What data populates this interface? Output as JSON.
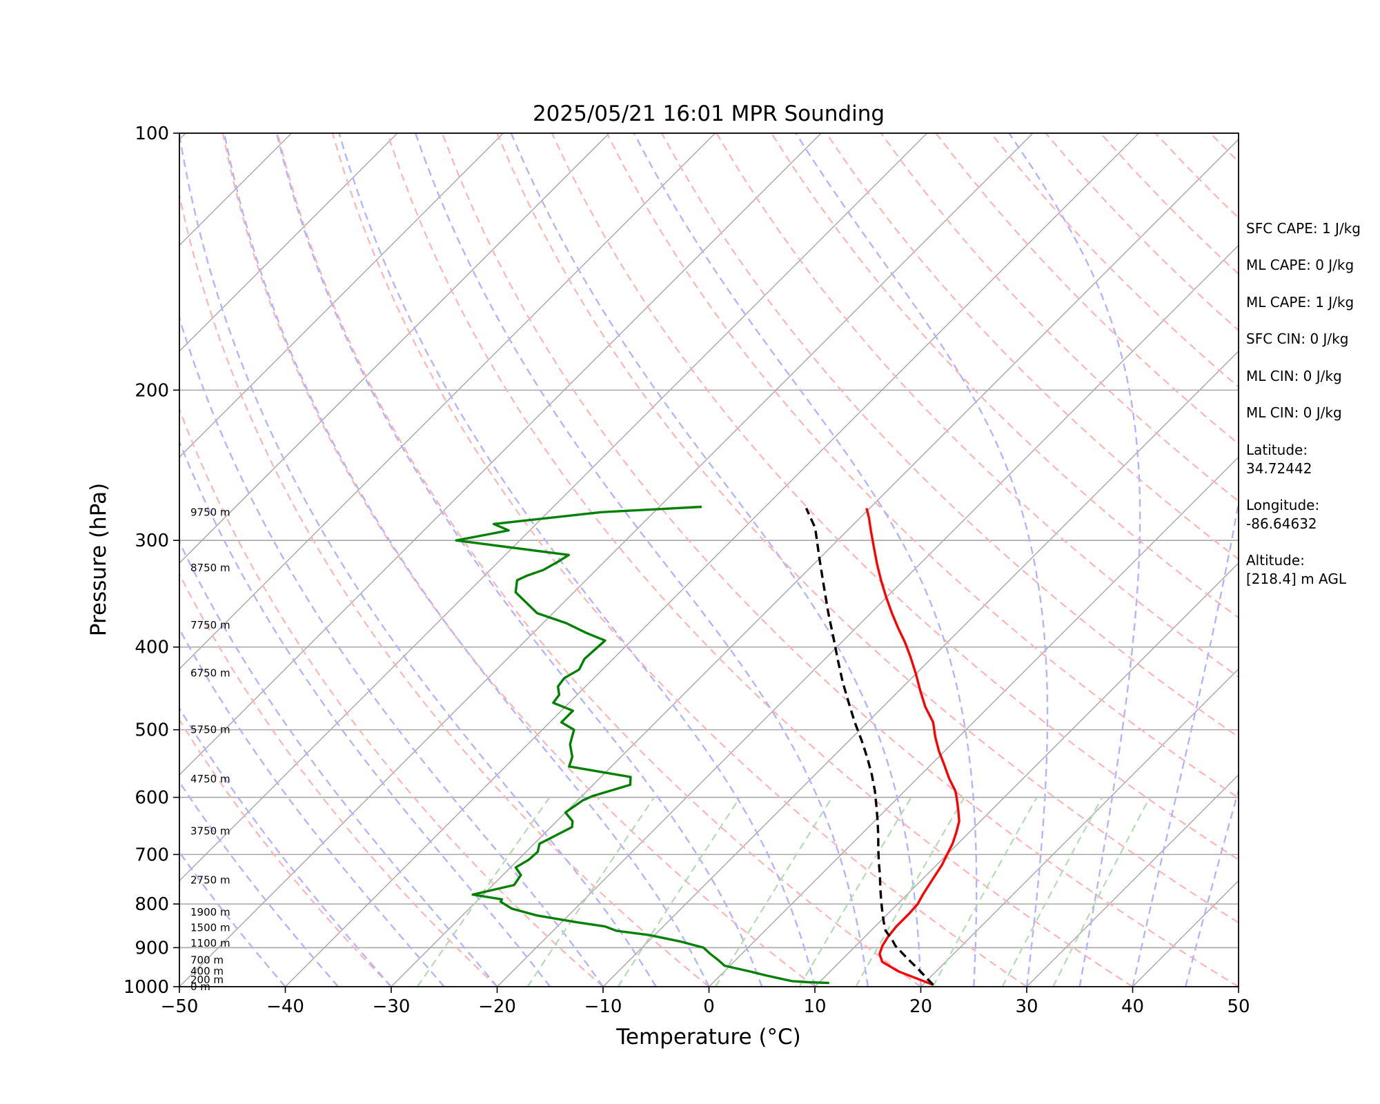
{
  "chart_data": {
    "type": "line",
    "subtype": "skew-T log-P diagram",
    "title": "2025/05/21 16:01 MPR Sounding",
    "xlabel": "Temperature (°C)",
    "ylabel": "Pressure (hPa)",
    "xlim": [
      -50,
      50
    ],
    "ylim": [
      1000,
      100
    ],
    "y_scale": "log",
    "x_ticks": [
      "−50",
      "−40",
      "−30",
      "−20",
      "−10",
      "0",
      "10",
      "20",
      "30",
      "40",
      "50"
    ],
    "y_ticks": [
      1000,
      900,
      800,
      700,
      600,
      500,
      400,
      300,
      200,
      100
    ],
    "grid": "horizontal isobars at y ticks",
    "colors": {
      "temperature": "#ff0000",
      "dewpoint": "#008000",
      "parcel": "#000000",
      "isotherm": "#a6a6a6",
      "dry_adiabat": "#ffb3b3",
      "moist_adiabat": "#b3b3ff",
      "mixing_ratio": "#b3dbb3"
    },
    "series": [
      {
        "name": "",
        "role": "temperature",
        "points": [
          [
            21.0,
            995
          ],
          [
            16.5,
            960
          ],
          [
            14.0,
            935
          ],
          [
            13.0,
            915
          ],
          [
            12.5,
            895
          ],
          [
            12.2,
            875
          ],
          [
            12.0,
            850
          ],
          [
            12.0,
            820
          ],
          [
            11.9,
            800
          ],
          [
            11.5,
            780
          ],
          [
            11.0,
            750
          ],
          [
            10.5,
            720
          ],
          [
            10.0,
            700
          ],
          [
            9.5,
            680
          ],
          [
            8.8,
            660
          ],
          [
            8.0,
            640
          ],
          [
            6.8,
            620
          ],
          [
            5.5,
            600
          ],
          [
            4.8,
            590
          ],
          [
            3.0,
            570
          ],
          [
            1.3,
            550
          ],
          [
            -0.5,
            530
          ],
          [
            -2.2,
            510
          ],
          [
            -3.8,
            490
          ],
          [
            -6.0,
            470
          ],
          [
            -8.0,
            450
          ],
          [
            -10.0,
            430
          ],
          [
            -12.2,
            410
          ],
          [
            -14.0,
            395
          ],
          [
            -16.0,
            380
          ],
          [
            -18.0,
            365
          ],
          [
            -20.0,
            350
          ],
          [
            -22.0,
            335
          ],
          [
            -24.0,
            320
          ],
          [
            -26.0,
            305
          ],
          [
            -27.8,
            292
          ],
          [
            -29.2,
            282
          ],
          [
            -30.3,
            275
          ]
        ]
      },
      {
        "name": "",
        "role": "dewpoint",
        "points": [
          [
            11.0,
            990
          ],
          [
            9.0,
            988
          ],
          [
            7.3,
            985
          ],
          [
            4.3,
            970
          ],
          [
            2.5,
            960
          ],
          [
            -0.5,
            945
          ],
          [
            -1.7,
            930
          ],
          [
            -3.0,
            915
          ],
          [
            -3.8,
            905
          ],
          [
            -4.2,
            900
          ],
          [
            -7.0,
            885
          ],
          [
            -10.5,
            870
          ],
          [
            -14.0,
            860
          ],
          [
            -15.5,
            850
          ],
          [
            -18.7,
            840
          ],
          [
            -23.0,
            825
          ],
          [
            -26.0,
            810
          ],
          [
            -27.7,
            795
          ],
          [
            -27.8,
            790
          ],
          [
            -31.0,
            780
          ],
          [
            -28.0,
            760
          ],
          [
            -28.3,
            740
          ],
          [
            -29.5,
            725
          ],
          [
            -29.0,
            710
          ],
          [
            -28.9,
            695
          ],
          [
            -29.5,
            680
          ],
          [
            -29.0,
            670
          ],
          [
            -28.0,
            650
          ],
          [
            -28.5,
            640
          ],
          [
            -30.0,
            625
          ],
          [
            -29.5,
            605
          ],
          [
            -29.0,
            598
          ],
          [
            -26.5,
            580
          ],
          [
            -27.2,
            568
          ],
          [
            -34.0,
            552
          ],
          [
            -34.6,
            538
          ],
          [
            -36.0,
            520
          ],
          [
            -37.0,
            500
          ],
          [
            -38.9,
            490
          ],
          [
            -38.9,
            475
          ],
          [
            -41.5,
            465
          ],
          [
            -41.7,
            455
          ],
          [
            -42.6,
            445
          ],
          [
            -42.8,
            435
          ],
          [
            -42.2,
            425
          ],
          [
            -42.7,
            413
          ],
          [
            -42.5,
            393
          ],
          [
            -45.0,
            385
          ],
          [
            -47.8,
            375
          ],
          [
            -51.5,
            365
          ],
          [
            -55.5,
            345
          ],
          [
            -56.5,
            334
          ],
          [
            -56.0,
            330
          ],
          [
            -55.0,
            325
          ],
          [
            -54.4,
            318
          ],
          [
            -54.0,
            312
          ],
          [
            -66.0,
            300
          ],
          [
            -64.0,
            296
          ],
          [
            -62.0,
            292
          ],
          [
            -64.0,
            287
          ],
          [
            -55.0,
            278
          ],
          [
            -50.5,
            276
          ],
          [
            -46.0,
            274
          ]
        ]
      },
      {
        "name": "",
        "role": "parcel",
        "points": [
          [
            21.0,
            995
          ],
          [
            19.6,
            975
          ],
          [
            18.2,
            955
          ],
          [
            16.7,
            935
          ],
          [
            15.2,
            915
          ],
          [
            13.7,
            895
          ],
          [
            12.8,
            880
          ],
          [
            11.4,
            860
          ],
          [
            10.4,
            840
          ],
          [
            9.2,
            815
          ],
          [
            8.0,
            790
          ],
          [
            6.8,
            765
          ],
          [
            5.6,
            740
          ],
          [
            4.3,
            715
          ],
          [
            3.0,
            690
          ],
          [
            1.7,
            665
          ],
          [
            0.3,
            640
          ],
          [
            -1.2,
            615
          ],
          [
            -2.8,
            590
          ],
          [
            -4.6,
            565
          ],
          [
            -6.6,
            540
          ],
          [
            -8.8,
            515
          ],
          [
            -11.2,
            490
          ],
          [
            -13.6,
            465
          ],
          [
            -16.1,
            440
          ],
          [
            -18.6,
            415
          ],
          [
            -21.2,
            390
          ],
          [
            -24.0,
            365
          ],
          [
            -26.9,
            340
          ],
          [
            -30.0,
            315
          ],
          [
            -33.3,
            290
          ],
          [
            -36.0,
            275
          ]
        ]
      }
    ],
    "height_labels": [
      "0 m",
      "200 m",
      "400 m",
      "700 m",
      "1100 m",
      "1500 m",
      "1900 m",
      "2750 m",
      "3750 m",
      "4750 m",
      "5750 m",
      "6750 m",
      "7750 m",
      "8750 m",
      "9750 m"
    ],
    "height_label_pressures": [
      1000,
      982,
      959,
      931,
      889,
      853,
      818,
      750,
      657,
      571,
      500,
      429,
      377,
      323,
      278
    ]
  },
  "stats": [
    "SFC CAPE: 1 J/kg",
    "ML CAPE: 0 J/kg",
    "ML CAPE: 1 J/kg",
    "SFC CIN: 0 J/kg",
    "ML CIN: 0 J/kg",
    "ML CIN: 0 J/kg"
  ],
  "location": {
    "latitude_label": "Latitude:",
    "latitude_value": "34.72442",
    "longitude_label": "Longitude:",
    "longitude_value": "-86.64632",
    "altitude_label": "Altitude:",
    "altitude_value": "[218.4] m AGL"
  }
}
